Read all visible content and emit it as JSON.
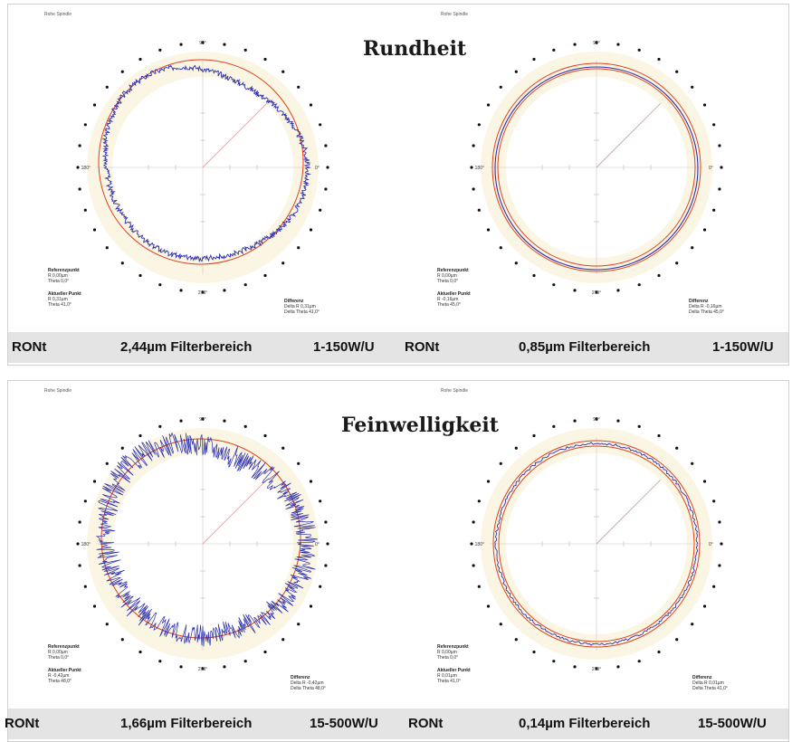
{
  "sections": [
    {
      "title": "Rundheit",
      "charts": [
        {
          "header": "Rohe Spindle",
          "angles": {
            "top": "90°",
            "left": "180°",
            "right": "0°",
            "bottom": "270°"
          },
          "ref_label": "Referenzpunkt",
          "ref_r": "R 0,00µm",
          "ref_theta": "Theta 0,0°",
          "cur_label": "Aktueller Punkt",
          "cur_r": "R 0,31µm",
          "cur_theta": "Theta 41,0°",
          "diff_label": "Differenz",
          "diff_r": "Delta R 0,31µm",
          "diff_theta": "Delta Theta 41,0°",
          "footer": {
            "left": "RONt",
            "middle": "2,44µm Filterbereich",
            "right": "1-150W/U"
          },
          "profile": "wavy-large"
        },
        {
          "header": "Rohe Spindle",
          "angles": {
            "top": "90°",
            "left": "180°",
            "right": "0°",
            "bottom": "270°"
          },
          "ref_label": "Referenzpunkt",
          "ref_r": "R 0,00µm",
          "ref_theta": "Theta 0,0°",
          "cur_label": "Aktueller Punkt",
          "cur_r": "R -0,16µm",
          "cur_theta": "Theta 45,0°",
          "diff_label": "Differenz",
          "diff_r": "Delta R -0,16µm",
          "diff_theta": "Delta Theta 45,0°",
          "footer": {
            "left": "RONt",
            "middle": "0,85µm Filterbereich",
            "right": "1-150W/U"
          },
          "profile": "smooth-tight"
        }
      ]
    },
    {
      "title": "Feinwelligkeit",
      "charts": [
        {
          "header": "Rohe Spindle",
          "angles": {
            "top": "90°",
            "left": "180°",
            "right": "0°",
            "bottom": "270°"
          },
          "ref_label": "Referenzpunkt",
          "ref_r": "R 0,00µm",
          "ref_theta": "Theta 0,0°",
          "cur_label": "Aktueller Punkt",
          "cur_r": "R -0,42µm",
          "cur_theta": "Theta 48,0°",
          "diff_label": "Differenz",
          "diff_r": "Delta R -0,42µm",
          "diff_theta": "Delta Theta 48,0°",
          "footer": {
            "left": "RONt",
            "middle": "1,66µm Filterbereich",
            "right": "15-500W/U"
          },
          "profile": "noisy-large"
        },
        {
          "header": "Rohe Spindle",
          "angles": {
            "top": "90°",
            "left": "180°",
            "right": "0°",
            "bottom": "270°"
          },
          "ref_label": "Referenzpunkt",
          "ref_r": "R 0,00µm",
          "ref_theta": "Theta 0,0°",
          "cur_label": "Aktueller Punkt",
          "cur_r": "R 0,01µm",
          "cur_theta": "Theta 41,0°",
          "diff_label": "Differenz",
          "diff_r": "Delta R 0,01µm",
          "diff_theta": "Delta Theta 41,0°",
          "footer": {
            "left": "RONt",
            "middle": "0,14µm Filterbereich",
            "right": "15-500W/U"
          },
          "profile": "noisy-tight"
        }
      ]
    }
  ],
  "colors": {
    "ring": "#fbf6e3",
    "reference": "#e0401e",
    "profile": "#2b2fb0",
    "dot": "#111111",
    "footer_bg": "#e4e4e4"
  }
}
